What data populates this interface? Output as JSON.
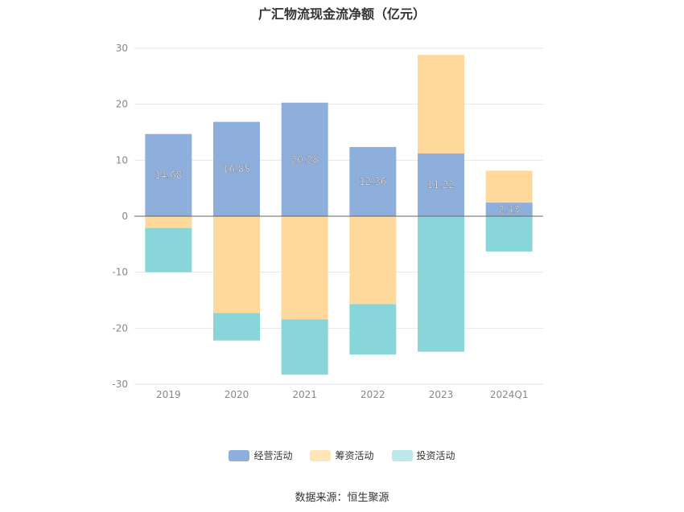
{
  "chart_data": {
    "type": "bar",
    "stacked": true,
    "title": "广汇物流现金流净额（亿元）",
    "categories": [
      "2019",
      "2020",
      "2021",
      "2022",
      "2023",
      "2024Q1"
    ],
    "series": [
      {
        "name": "经营活动",
        "color": "#8EAEDB",
        "values": [
          14.68,
          16.85,
          20.28,
          12.36,
          11.22,
          2.43
        ],
        "show_labels": true
      },
      {
        "name": "筹资活动",
        "color": "#FFD99B",
        "values": [
          -2.1,
          -17.3,
          -18.4,
          -15.7,
          17.6,
          5.7
        ],
        "show_labels": false
      },
      {
        "name": "投资活动",
        "color": "#88D6DA",
        "values": [
          -7.9,
          -4.9,
          -9.9,
          -9.0,
          -24.2,
          -6.3
        ],
        "show_labels": false
      }
    ],
    "ylim": [
      -30,
      30
    ],
    "yticks": [
      30,
      20,
      10,
      0,
      -10,
      -20,
      -30
    ],
    "grid": true,
    "legend_position": "bottom"
  },
  "legend": {
    "items": [
      {
        "label": "经营活动",
        "color": "#8EAEDB"
      },
      {
        "label": "筹资活动",
        "color": "#FFE5B7"
      },
      {
        "label": "投资活动",
        "color": "#BDE8EA"
      }
    ]
  },
  "source": "数据来源：恒生聚源"
}
